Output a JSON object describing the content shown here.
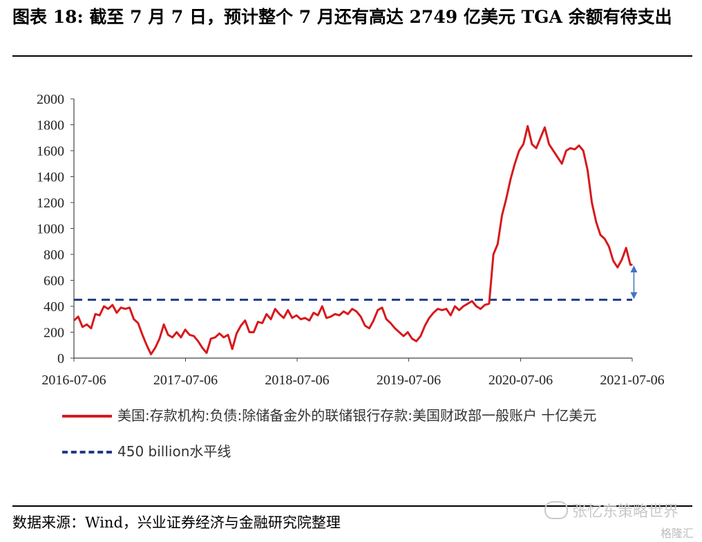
{
  "header": {
    "title": "图表 18: 截至 7 月 7 日，预计整个 7 月还有高达 2749 亿美元 TGA 余额有待支出"
  },
  "footer": {
    "source": "数据来源：Wind，兴业证券经济与金融研究院整理",
    "watermark": "张忆东策略世界",
    "watermark2": "格隆汇"
  },
  "colors": {
    "series": "#d7191c",
    "reference": "#1f3a8a",
    "arrow": "#4472c4"
  },
  "chart_data": {
    "type": "line",
    "title": "",
    "xlabel": "",
    "ylabel": "",
    "ylim": [
      0,
      2000
    ],
    "yticks": [
      0,
      200,
      400,
      600,
      800,
      1000,
      1200,
      1400,
      1600,
      1800,
      2000
    ],
    "xticks": [
      "2016-07-06",
      "2017-07-06",
      "2018-07-06",
      "2019-07-06",
      "2020-07-06",
      "2021-07-06"
    ],
    "xlim": [
      "2016-07-06",
      "2021-07-06"
    ],
    "grid": false,
    "legend_position": "bottom",
    "series": [
      {
        "name": "美国:存款机构:负债:除储备金外的联储银行存款:美国财政部一般账户 十亿美元",
        "points": [
          [
            "2016-07-06",
            290
          ],
          [
            "2016-07-20",
            320
          ],
          [
            "2016-08-03",
            240
          ],
          [
            "2016-08-17",
            260
          ],
          [
            "2016-08-31",
            230
          ],
          [
            "2016-09-14",
            340
          ],
          [
            "2016-09-28",
            330
          ],
          [
            "2016-10-12",
            400
          ],
          [
            "2016-10-26",
            380
          ],
          [
            "2016-11-09",
            410
          ],
          [
            "2016-11-23",
            350
          ],
          [
            "2016-12-07",
            390
          ],
          [
            "2016-12-21",
            380
          ],
          [
            "2017-01-04",
            390
          ],
          [
            "2017-01-18",
            300
          ],
          [
            "2017-02-01",
            270
          ],
          [
            "2017-02-15",
            180
          ],
          [
            "2017-03-01",
            100
          ],
          [
            "2017-03-15",
            30
          ],
          [
            "2017-03-29",
            80
          ],
          [
            "2017-04-12",
            150
          ],
          [
            "2017-04-26",
            260
          ],
          [
            "2017-05-10",
            180
          ],
          [
            "2017-05-24",
            160
          ],
          [
            "2017-06-07",
            200
          ],
          [
            "2017-06-21",
            160
          ],
          [
            "2017-07-05",
            220
          ],
          [
            "2017-07-19",
            180
          ],
          [
            "2017-08-02",
            170
          ],
          [
            "2017-08-16",
            130
          ],
          [
            "2017-08-30",
            80
          ],
          [
            "2017-09-13",
            40
          ],
          [
            "2017-09-27",
            150
          ],
          [
            "2017-10-11",
            160
          ],
          [
            "2017-10-25",
            190
          ],
          [
            "2017-11-08",
            160
          ],
          [
            "2017-11-22",
            180
          ],
          [
            "2017-12-06",
            70
          ],
          [
            "2017-12-20",
            190
          ],
          [
            "2018-01-03",
            250
          ],
          [
            "2018-01-17",
            290
          ],
          [
            "2018-01-31",
            200
          ],
          [
            "2018-02-14",
            200
          ],
          [
            "2018-02-28",
            280
          ],
          [
            "2018-03-14",
            270
          ],
          [
            "2018-03-28",
            340
          ],
          [
            "2018-04-11",
            300
          ],
          [
            "2018-04-25",
            380
          ],
          [
            "2018-05-09",
            340
          ],
          [
            "2018-05-23",
            310
          ],
          [
            "2018-06-06",
            370
          ],
          [
            "2018-06-20",
            310
          ],
          [
            "2018-07-04",
            330
          ],
          [
            "2018-07-18",
            300
          ],
          [
            "2018-08-01",
            310
          ],
          [
            "2018-08-15",
            290
          ],
          [
            "2018-08-29",
            350
          ],
          [
            "2018-09-12",
            330
          ],
          [
            "2018-09-26",
            400
          ],
          [
            "2018-10-10",
            310
          ],
          [
            "2018-10-24",
            320
          ],
          [
            "2018-11-07",
            340
          ],
          [
            "2018-11-21",
            330
          ],
          [
            "2018-12-05",
            360
          ],
          [
            "2018-12-19",
            340
          ],
          [
            "2019-01-02",
            380
          ],
          [
            "2019-01-16",
            360
          ],
          [
            "2019-01-30",
            320
          ],
          [
            "2019-02-13",
            250
          ],
          [
            "2019-02-27",
            230
          ],
          [
            "2019-03-13",
            290
          ],
          [
            "2019-03-27",
            370
          ],
          [
            "2019-04-10",
            390
          ],
          [
            "2019-04-24",
            300
          ],
          [
            "2019-05-08",
            270
          ],
          [
            "2019-05-22",
            230
          ],
          [
            "2019-06-05",
            200
          ],
          [
            "2019-06-19",
            170
          ],
          [
            "2019-07-03",
            200
          ],
          [
            "2019-07-17",
            150
          ],
          [
            "2019-07-31",
            130
          ],
          [
            "2019-08-14",
            170
          ],
          [
            "2019-08-28",
            250
          ],
          [
            "2019-09-11",
            310
          ],
          [
            "2019-09-25",
            350
          ],
          [
            "2019-10-09",
            380
          ],
          [
            "2019-10-23",
            370
          ],
          [
            "2019-11-06",
            380
          ],
          [
            "2019-11-20",
            330
          ],
          [
            "2019-12-04",
            400
          ],
          [
            "2019-12-18",
            370
          ],
          [
            "2020-01-01",
            400
          ],
          [
            "2020-01-15",
            420
          ],
          [
            "2020-01-29",
            440
          ],
          [
            "2020-02-12",
            400
          ],
          [
            "2020-02-26",
            380
          ],
          [
            "2020-03-11",
            410
          ],
          [
            "2020-03-25",
            420
          ],
          [
            "2020-04-08",
            800
          ],
          [
            "2020-04-22",
            880
          ],
          [
            "2020-05-06",
            1100
          ],
          [
            "2020-05-20",
            1230
          ],
          [
            "2020-06-03",
            1380
          ],
          [
            "2020-06-17",
            1500
          ],
          [
            "2020-07-01",
            1600
          ],
          [
            "2020-07-15",
            1650
          ],
          [
            "2020-07-29",
            1790
          ],
          [
            "2020-08-12",
            1650
          ],
          [
            "2020-08-26",
            1620
          ],
          [
            "2020-09-09",
            1700
          ],
          [
            "2020-09-23",
            1780
          ],
          [
            "2020-10-07",
            1650
          ],
          [
            "2020-10-21",
            1600
          ],
          [
            "2020-11-04",
            1550
          ],
          [
            "2020-11-18",
            1500
          ],
          [
            "2020-12-02",
            1600
          ],
          [
            "2020-12-16",
            1620
          ],
          [
            "2020-12-30",
            1610
          ],
          [
            "2021-01-13",
            1640
          ],
          [
            "2021-01-27",
            1600
          ],
          [
            "2021-02-10",
            1450
          ],
          [
            "2021-02-24",
            1200
          ],
          [
            "2021-03-10",
            1050
          ],
          [
            "2021-03-24",
            950
          ],
          [
            "2021-04-07",
            920
          ],
          [
            "2021-04-21",
            860
          ],
          [
            "2021-05-05",
            750
          ],
          [
            "2021-05-19",
            700
          ],
          [
            "2021-06-02",
            760
          ],
          [
            "2021-06-16",
            850
          ],
          [
            "2021-06-30",
            720
          ],
          [
            "2021-07-07",
            720
          ]
        ]
      },
      {
        "name": "450 billion水平线",
        "style": "dashed",
        "constant": 450
      }
    ],
    "annotations": [
      {
        "type": "double-arrow",
        "x": "2021-07-07",
        "from": 720,
        "to": 450
      }
    ]
  }
}
